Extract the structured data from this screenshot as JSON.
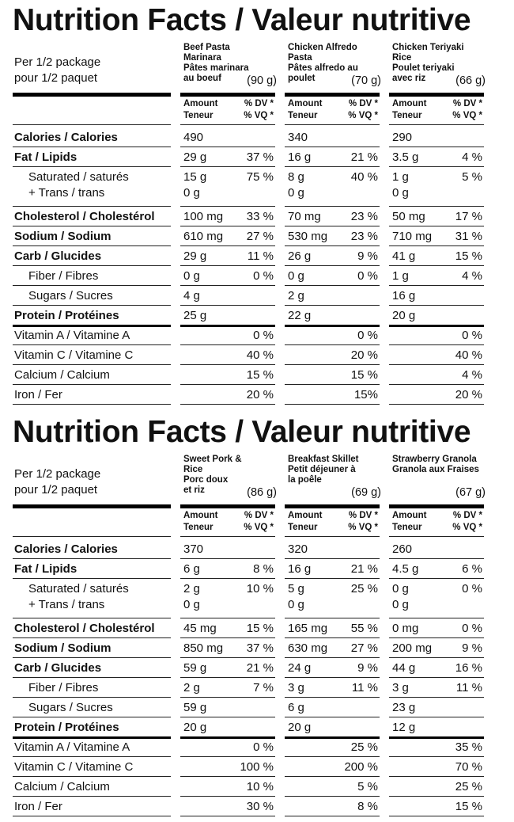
{
  "panels": [
    {
      "title": "Nutrition Facts / Valeur nutritive",
      "per_line1": "Per 1/2 package",
      "per_line2": "pour 1/2 paquet",
      "products": [
        {
          "name": [
            "Beef Pasta",
            "Marinara",
            "Pâtes marinara",
            "au boeuf"
          ],
          "serving": "(90 g)",
          "amount_header": [
            "Amount",
            "Teneur"
          ],
          "dv_header": [
            "% DV *",
            "% VQ *"
          ],
          "calories": "490",
          "fat": [
            "29 g",
            "37 %"
          ],
          "sat": [
            "15 g",
            "75 %"
          ],
          "trans": "0 g",
          "chol": [
            "100 mg",
            "33 %"
          ],
          "sodium": [
            "610 mg",
            "27 %"
          ],
          "carb": [
            "29 g",
            "11 %"
          ],
          "fiber": [
            "0 g",
            "0 %"
          ],
          "sugars": "4 g",
          "protein": "25 g",
          "vita": "0 %",
          "vitc": "40 %",
          "calcium": "15 %",
          "iron": "20 %"
        },
        {
          "name": [
            "Chicken Alfredo",
            "Pasta",
            "Pâtes alfredo au",
            "poulet"
          ],
          "serving": "(70 g)",
          "amount_header": [
            "Amount",
            "Teneur"
          ],
          "dv_header": [
            "% DV *",
            "% VQ *"
          ],
          "calories": "340",
          "fat": [
            "16 g",
            "21 %"
          ],
          "sat": [
            "8 g",
            "40 %"
          ],
          "trans": "0 g",
          "chol": [
            "70 mg",
            "23 %"
          ],
          "sodium": [
            "530 mg",
            "23 %"
          ],
          "carb": [
            "26 g",
            "9 %"
          ],
          "fiber": [
            "0 g",
            "0 %"
          ],
          "sugars": "2 g",
          "protein": "22 g",
          "vita": "0 %",
          "vitc": "20 %",
          "calcium": "15 %",
          "iron": "15%"
        },
        {
          "name": [
            "Chicken Teriyaki",
            "Rice",
            "Poulet teriyaki",
            "avec riz"
          ],
          "serving": "(66 g)",
          "amount_header": [
            "Amount",
            "Teneur"
          ],
          "dv_header": [
            "% DV *",
            "% VQ *"
          ],
          "calories": "290",
          "fat": [
            "3.5 g",
            "4 %"
          ],
          "sat": [
            "1 g",
            "5 %"
          ],
          "trans": "0 g",
          "chol": [
            "50 mg",
            "17 %"
          ],
          "sodium": [
            "710 mg",
            "31 %"
          ],
          "carb": [
            "41 g",
            "15 %"
          ],
          "fiber": [
            "1 g",
            "4 %"
          ],
          "sugars": "16 g",
          "protein": "20 g",
          "vita": "0 %",
          "vitc": "40 %",
          "calcium": "4 %",
          "iron": "20 %"
        }
      ]
    },
    {
      "title": "Nutrition Facts / Valeur nutritive",
      "per_line1": "Per 1/2 package",
      "per_line2": "pour 1/2 paquet",
      "products": [
        {
          "name": [
            "Sweet Pork &",
            "Rice",
            "Porc doux",
            "et riz"
          ],
          "serving": "(86 g)",
          "amount_header": [
            "Amount",
            "Teneur"
          ],
          "dv_header": [
            "% DV *",
            "% VQ *"
          ],
          "calories": "370",
          "fat": [
            "6 g",
            "8 %"
          ],
          "sat": [
            "2 g",
            "10 %"
          ],
          "trans": "0 g",
          "chol": [
            "45 mg",
            "15 %"
          ],
          "sodium": [
            "850 mg",
            "37 %"
          ],
          "carb": [
            "59 g",
            "21 %"
          ],
          "fiber": [
            "2 g",
            "7 %"
          ],
          "sugars": "59 g",
          "protein": "20 g",
          "vita": "0 %",
          "vitc": "100 %",
          "calcium": "10 %",
          "iron": "30 %"
        },
        {
          "name": [
            "Breakfast Skillet",
            "Petit déjeuner à",
            "la poêle",
            ""
          ],
          "serving": "(69 g)",
          "amount_header": [
            "Amount",
            "Teneur"
          ],
          "dv_header": [
            "% DV *",
            "% VQ *"
          ],
          "calories": "320",
          "fat": [
            "16 g",
            "21 %"
          ],
          "sat": [
            "5 g",
            "25 %"
          ],
          "trans": "0 g",
          "chol": [
            "165 mg",
            "55 %"
          ],
          "sodium": [
            "630 mg",
            "27 %"
          ],
          "carb": [
            "24 g",
            "9 %"
          ],
          "fiber": [
            "3 g",
            "11 %"
          ],
          "sugars": "6 g",
          "protein": "20 g",
          "vita": "25 %",
          "vitc": "200 %",
          "calcium": "5 %",
          "iron": "8 %"
        },
        {
          "name": [
            "Strawberry Granola",
            "Granola aux Fraises",
            "",
            ""
          ],
          "serving": "(67 g)",
          "amount_header": [
            "Amount",
            "Teneur"
          ],
          "dv_header": [
            "% DV *",
            "% VQ *"
          ],
          "calories": "260",
          "fat": [
            "4.5 g",
            "6 %"
          ],
          "sat": [
            "0 g",
            "0 %"
          ],
          "trans": "0 g",
          "chol": [
            "0 mg",
            "0 %"
          ],
          "sodium": [
            "200 mg",
            "9 %"
          ],
          "carb": [
            "44 g",
            "16 %"
          ],
          "fiber": [
            "3 g",
            "11 %"
          ],
          "sugars": "23 g",
          "protein": "12 g",
          "vita": "35 %",
          "vitc": "70 %",
          "calcium": "25 %",
          "iron": "15 %"
        }
      ]
    }
  ],
  "rows": {
    "calories": "Calories / Calories",
    "fat": "Fat / Lipids",
    "sat": "Saturated / saturés",
    "trans": "+ Trans / trans",
    "chol": "Cholesterol / Cholestérol",
    "sodium": "Sodium / Sodium",
    "carb": "Carb / Glucides",
    "fiber": "Fiber / Fibres",
    "sugars": "Sugars / Sucres",
    "protein": "Protein / Protéines",
    "vita": "Vitamin A / Vitamine A",
    "vitc": "Vitamin C / Vitamine C",
    "calcium": "Calcium / Calcium",
    "iron": "Iron / Fer"
  }
}
